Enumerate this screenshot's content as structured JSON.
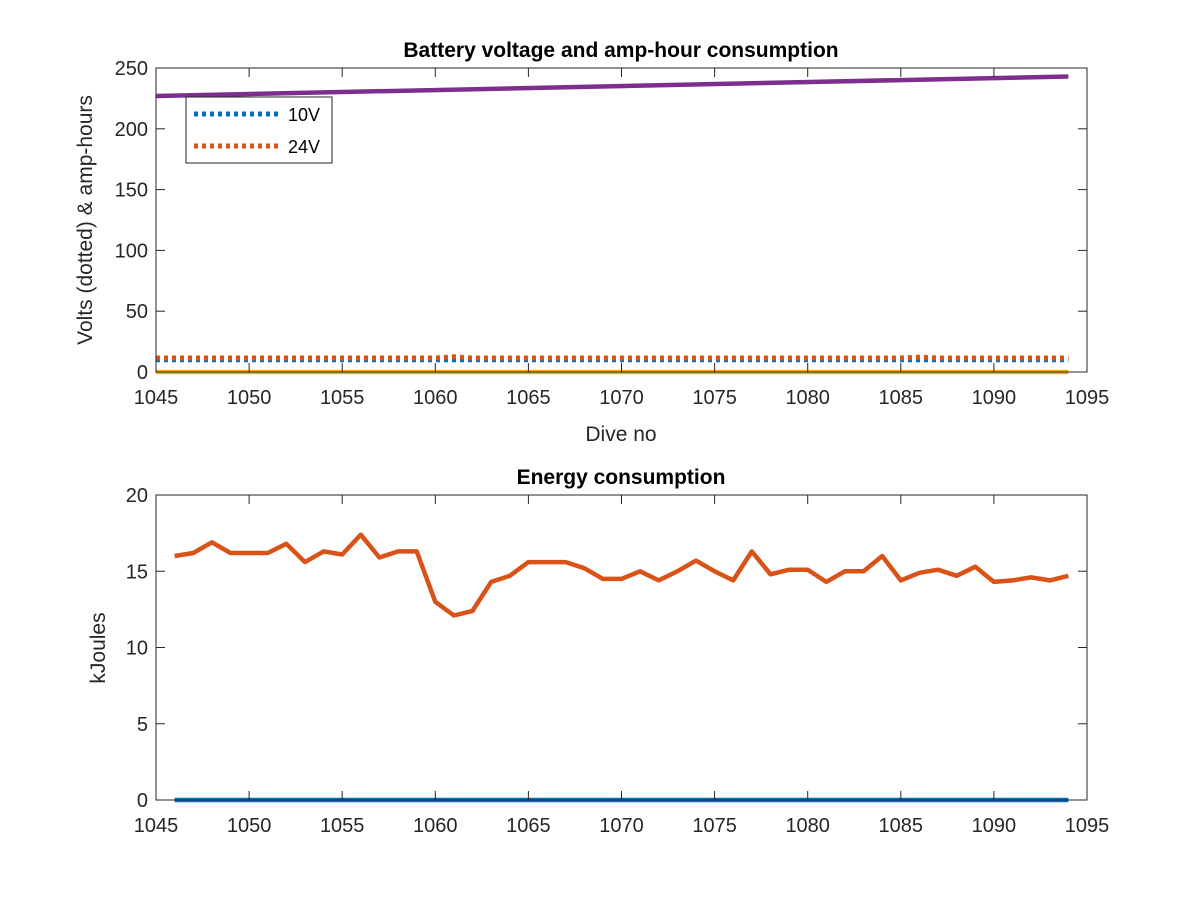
{
  "chart_data": [
    {
      "type": "line",
      "title": "Battery voltage and amp-hour consumption",
      "xlabel": "Dive no",
      "ylabel": "Volts (dotted) & amp-hours",
      "xlim": [
        1045,
        1095
      ],
      "ylim": [
        0,
        250
      ],
      "xticks": [
        1045,
        1050,
        1055,
        1060,
        1065,
        1070,
        1075,
        1080,
        1085,
        1090,
        1095
      ],
      "yticks": [
        0,
        50,
        100,
        150,
        200,
        250
      ],
      "grid": false,
      "legend": {
        "placement": "top-left",
        "entries": [
          "10V",
          "24V"
        ]
      },
      "series": [
        {
          "name": "10V",
          "style": "dotted",
          "color": "#0072BD",
          "x": [
            1045,
            1094
          ],
          "y": [
            10,
            10
          ]
        },
        {
          "name": "24V",
          "style": "dotted",
          "color": "#D95319",
          "x": [
            1045,
            1055,
            1060,
            1061,
            1062,
            1070,
            1080,
            1085,
            1086,
            1087,
            1094
          ],
          "y": [
            11.5,
            11.5,
            11.5,
            12.5,
            11.5,
            11.5,
            11.5,
            11.5,
            12.2,
            11.5,
            11.5
          ]
        },
        {
          "style": "solid",
          "color": "#EDB120",
          "x": [
            1045,
            1094
          ],
          "y": [
            0,
            0
          ]
        },
        {
          "style": "solid",
          "color": "#7E2F8E",
          "x": [
            1045,
            1094
          ],
          "y": [
            227,
            243
          ]
        }
      ]
    },
    {
      "type": "line",
      "title": "Energy consumption",
      "xlabel": "",
      "ylabel": "kJoules",
      "xlim": [
        1045,
        1095
      ],
      "ylim": [
        0,
        20
      ],
      "xticks": [
        1045,
        1050,
        1055,
        1060,
        1065,
        1070,
        1075,
        1080,
        1085,
        1090,
        1095
      ],
      "yticks": [
        0,
        5,
        10,
        15,
        20
      ],
      "grid": false,
      "series": [
        {
          "style": "solid",
          "color": "#0072BD",
          "x": [
            1046,
            1094
          ],
          "y": [
            0,
            0
          ]
        },
        {
          "style": "solid",
          "color": "#D95319",
          "x": [
            1046,
            1047,
            1048,
            1049,
            1050,
            1051,
            1052,
            1053,
            1054,
            1055,
            1056,
            1057,
            1058,
            1059,
            1060,
            1061,
            1062,
            1063,
            1064,
            1065,
            1066,
            1067,
            1068,
            1069,
            1070,
            1071,
            1072,
            1073,
            1074,
            1075,
            1076,
            1077,
            1078,
            1079,
            1080,
            1081,
            1082,
            1083,
            1084,
            1085,
            1086,
            1087,
            1088,
            1089,
            1090,
            1091,
            1092,
            1093,
            1094
          ],
          "y": [
            16.0,
            16.2,
            16.9,
            16.2,
            16.2,
            16.2,
            16.8,
            15.6,
            16.3,
            16.1,
            17.4,
            15.9,
            16.3,
            16.3,
            13.0,
            12.1,
            12.4,
            14.3,
            14.7,
            15.6,
            15.6,
            15.6,
            15.2,
            14.5,
            14.5,
            15.0,
            14.4,
            15.0,
            15.7,
            15.0,
            14.4,
            16.3,
            14.8,
            15.1,
            15.1,
            14.3,
            15.0,
            15.0,
            16.0,
            14.4,
            14.9,
            15.1,
            14.7,
            15.3,
            14.3,
            14.4,
            14.6,
            14.4,
            14.7
          ]
        }
      ]
    }
  ]
}
